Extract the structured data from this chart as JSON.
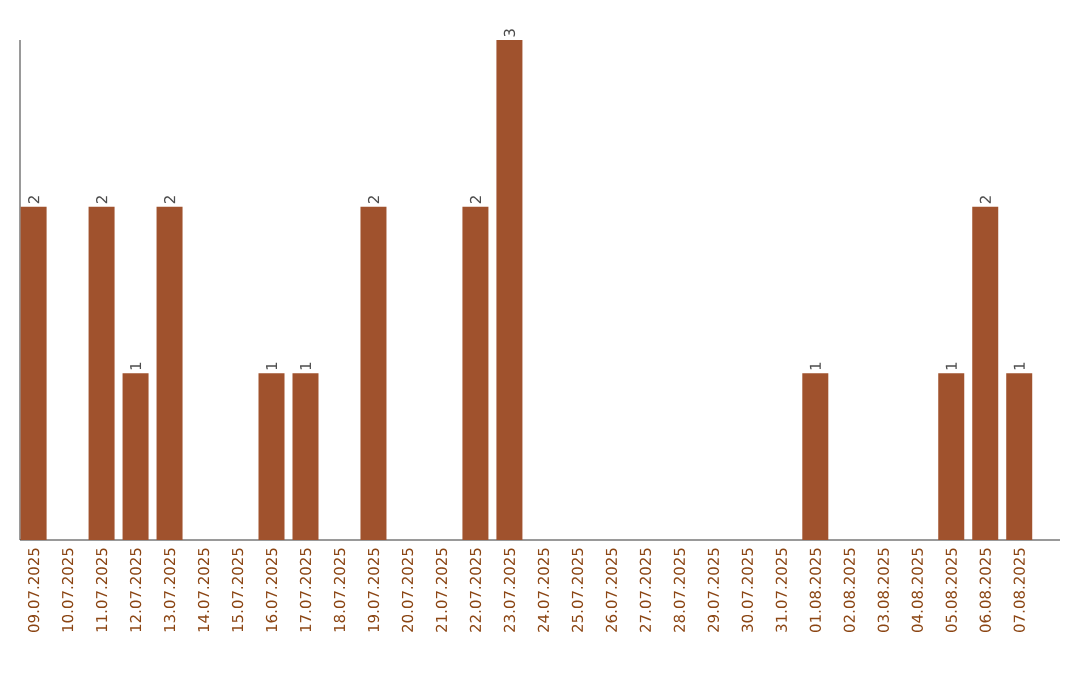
{
  "chart_data": {
    "type": "bar",
    "categories": [
      "09.07.2025",
      "10.07.2025",
      "11.07.2025",
      "12.07.2025",
      "13.07.2025",
      "14.07.2025",
      "15.07.2025",
      "16.07.2025",
      "17.07.2025",
      "18.07.2025",
      "19.07.2025",
      "20.07.2025",
      "21.07.2025",
      "22.07.2025",
      "23.07.2025",
      "24.07.2025",
      "25.07.2025",
      "26.07.2025",
      "27.07.2025",
      "28.07.2025",
      "29.07.2025",
      "30.07.2025",
      "31.07.2025",
      "01.08.2025",
      "02.08.2025",
      "03.08.2025",
      "04.08.2025",
      "05.08.2025",
      "06.08.2025",
      "07.08.2025"
    ],
    "values": [
      2,
      0,
      2,
      1,
      2,
      0,
      0,
      1,
      1,
      0,
      2,
      0,
      0,
      2,
      3,
      0,
      0,
      0,
      0,
      0,
      0,
      0,
      0,
      1,
      0,
      0,
      0,
      1,
      2,
      1
    ],
    "value_labels": [
      "2",
      null,
      "2",
      "1",
      "2",
      null,
      null,
      "1",
      "1",
      null,
      "2",
      null,
      null,
      "2",
      "3",
      null,
      null,
      null,
      null,
      null,
      null,
      null,
      null,
      "1",
      null,
      null,
      null,
      "1",
      "2",
      "1"
    ],
    "color": "#a0522d",
    "ylim": [
      0,
      3
    ],
    "tick_labels": "x"
  }
}
